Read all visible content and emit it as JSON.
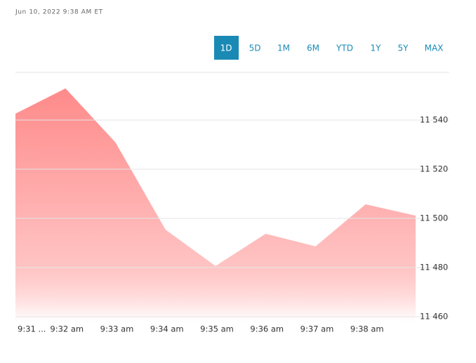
{
  "chart_data": {
    "type": "area",
    "timestamp": "Jun 10, 2022 9:38 AM ET",
    "range_buttons": [
      "1D",
      "5D",
      "1M",
      "6M",
      "YTD",
      "1Y",
      "5Y",
      "MAX"
    ],
    "selected_range": 0,
    "categories": [
      "9:31 ...",
      "9:32 am",
      "9:33 am",
      "9:34 am",
      "9:35 am",
      "9:36 am",
      "9:37 am",
      "9:38 am",
      null
    ],
    "values": [
      11542.6,
      11552.9,
      11530.9,
      11495.4,
      11480.6,
      11493.7,
      11488.6,
      11505.7,
      11501.1
    ],
    "color": "#ff8a8a",
    "ylim": [
      11458,
      11560
    ],
    "yticks": [
      {
        "value": 11460,
        "label": "11 460"
      },
      {
        "value": 11480,
        "label": "11 480"
      },
      {
        "value": 11500,
        "label": "11 500"
      },
      {
        "value": 11520,
        "label": "11 520"
      },
      {
        "value": 11540,
        "label": "11 540"
      }
    ],
    "grid": true
  }
}
